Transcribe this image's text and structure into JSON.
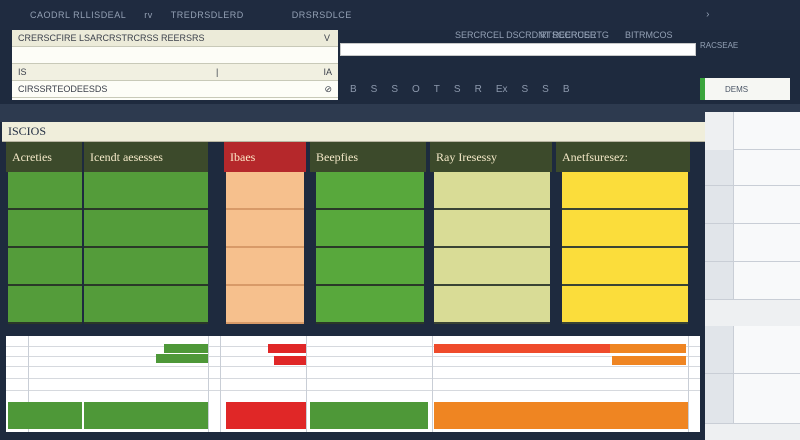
{
  "topbar": {
    "items": [
      "CAODRL RLLISDEAL",
      "rv",
      "TREDRSDLERD",
      "DRSRSDLCE"
    ]
  },
  "formula_panel": {
    "row1": "CRERSCFIRE LSARCRSTRCRSS REERSRS",
    "row1_right": "V",
    "row3_left": "IS",
    "row3_right": "IA",
    "row4": "CIRSSRTEODEESDS"
  },
  "ribbon": {
    "labels": [
      "SERCRCEL DSCRDNT REERUSRTG",
      "RTSCCRCEE",
      "BITRMCOS"
    ],
    "icons": [
      "B",
      "S",
      "S",
      "O",
      "T",
      "S",
      "R",
      "Ex",
      "S",
      "S",
      "B"
    ],
    "right_label": "RACSEAE",
    "namebox": "DEMS"
  },
  "sheet": {
    "title": "ISCIOS",
    "columns": [
      {
        "label": "Acreties",
        "color": "#549c3a"
      },
      {
        "label": "Icendt aesesses",
        "color": "#549c3a"
      },
      {
        "label": "Ibaes",
        "color": "#f6c08d"
      },
      {
        "label": "Beepfies",
        "color": "#58a83c"
      },
      {
        "label": "Ray Iresessy",
        "color": "#d9dc96"
      },
      {
        "label": "Anetfsuresez:",
        "color": "#fbdd3b"
      }
    ],
    "lower_bar_colors": [
      "#4e9838",
      "#e02727",
      "#4e9838",
      "#ef8522"
    ]
  },
  "colors": {
    "accent_green": "#549c3a",
    "accent_red": "#b5282b",
    "accent_orange": "#ef8522",
    "accent_yellow": "#fbdd3b"
  }
}
